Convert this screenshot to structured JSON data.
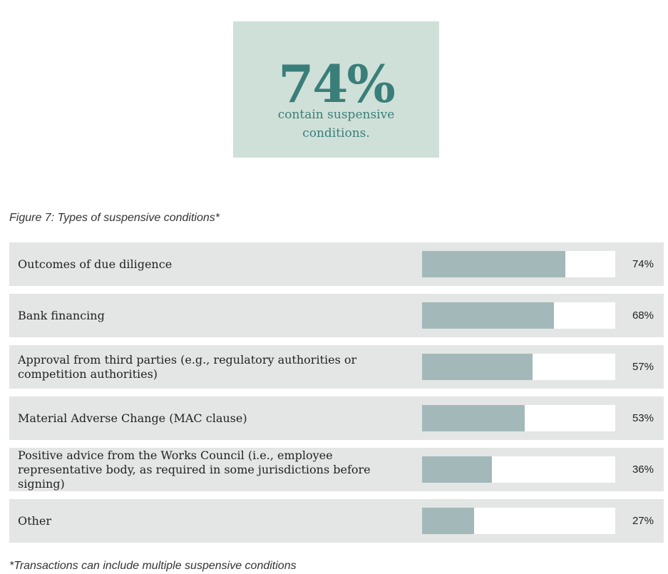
{
  "stat": {
    "value": "74%",
    "caption": "contain suspensive conditions."
  },
  "figure_title": "Figure 7: Types of suspensive conditions*",
  "footnote": "*Transactions can include multiple suspensive conditions",
  "colors": {
    "stat_box_bg": "#cfe0d8",
    "stat_text": "#3a7e79",
    "row_bg": "#e3e6e4",
    "bar_fill": "#a3b9b9",
    "bar_track": "#ffffff"
  },
  "chart_data": {
    "type": "bar",
    "orientation": "horizontal",
    "title": "Figure 7: Types of suspensive conditions*",
    "xlim": [
      0,
      100
    ],
    "categories": [
      "Outcomes of due diligence",
      "Bank financing",
      "Approval from third parties (e.g., regulatory authorities or competition authorities)",
      "Material Adverse Change (MAC clause)",
      "Positive advice from the Works Council (i.e., employee representative body, as required in some jurisdictions before signing)",
      "Other"
    ],
    "values": [
      74,
      68,
      57,
      53,
      36,
      27
    ],
    "value_labels": [
      "74%",
      "68%",
      "57%",
      "53%",
      "36%",
      "27%"
    ]
  }
}
